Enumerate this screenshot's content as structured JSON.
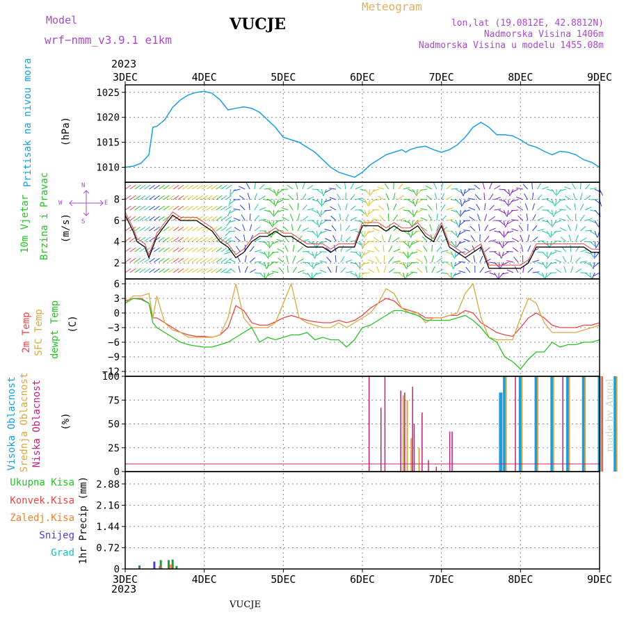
{
  "header": {
    "model_label": "Model",
    "model_version": "wrf−nmm_v3.9.1  e1km",
    "title": "VUCJE",
    "meteogram": "Meteogram",
    "coords": "lon,lat (19.0812E, 42.8812N)",
    "altitude": "Nadmorska Visina 1406m",
    "model_altitude": "Nadmorska Visina u modelu 1455.08m"
  },
  "x_axis": {
    "year": "2023",
    "days": [
      "3DEC",
      "4DEC",
      "5DEC",
      "6DEC",
      "7DEC",
      "8DEC",
      "9DEC"
    ]
  },
  "footer": "VUCJE",
  "watermark": "made by Angel",
  "colors": {
    "pressure": "#1a9ee0",
    "wind": "#22c422",
    "temp2m": "#e84545",
    "sfc": "#d9a840",
    "dewpt": "#22c422",
    "high_cloud": "#1a9ee0",
    "mid_cloud": "#d9a840",
    "low_cloud": "#c0207a",
    "total_precip": "#229933",
    "convective": "#e84545",
    "frozen": "#f08030",
    "snow": "#4444cc",
    "graupel": "#22bbbb"
  },
  "panels": {
    "pressure": {
      "title": "Pritisak na nivou mora",
      "unit": "(hPa)",
      "ticks": [
        "1010",
        "1015",
        "1020",
        "1025"
      ]
    },
    "wind": {
      "title1": "10m Vjetar",
      "title2": "Brzina i Pravac",
      "unit": "(m/s)",
      "ticks": [
        "2",
        "4",
        "6",
        "8"
      ],
      "compass_w": "W",
      "compass_e": "E",
      "compass_n": "N",
      "compass_s": "S"
    },
    "temp": {
      "title1": "2m Temp",
      "title2": "SFC Temp",
      "title3": "dewpt Temp",
      "unit": "(C)",
      "ticks": [
        "6",
        "3",
        "0",
        "−3",
        "−6",
        "−9",
        "−12"
      ]
    },
    "cloud": {
      "title1": "Visoka Oblacnost",
      "title2": "Srednja Oblacnost",
      "title3": "Niska Oblacnost",
      "unit": "(%)",
      "ticks": [
        "0",
        "25",
        "50",
        "75",
        "100"
      ]
    },
    "precip": {
      "legend": [
        "Ukupna Kisa",
        "Konvek.Kisa",
        "Zaledj.Kisa",
        "Snijeg",
        "Grad"
      ],
      "unit": "1hr Precip (mm)",
      "ticks": [
        "0",
        "0.72",
        "1.44",
        "2.16",
        "2.88"
      ]
    }
  },
  "chart_data": [
    {
      "type": "line",
      "title": "Pritisak na nivou mora",
      "ylabel": "(hPa)",
      "ylim": [
        1007,
        1026.5
      ],
      "x": [
        0,
        0.1,
        0.2,
        0.3,
        0.35,
        0.4,
        0.5,
        0.6,
        0.7,
        0.8,
        0.9,
        1.0,
        1.1,
        1.2,
        1.3,
        1.4,
        1.5,
        1.6,
        1.7,
        1.8,
        1.9,
        2.0,
        2.1,
        2.2,
        2.3,
        2.4,
        2.5,
        2.6,
        2.7,
        2.8,
        2.9,
        3.0,
        3.1,
        3.2,
        3.3,
        3.4,
        3.5,
        3.55,
        3.6,
        3.7,
        3.8,
        3.9,
        4.0,
        4.1,
        4.2,
        4.3,
        4.4,
        4.5,
        4.6,
        4.7,
        4.8,
        4.9,
        5.0,
        5.1,
        5.2,
        5.3,
        5.4,
        5.5,
        5.6,
        5.7,
        5.8,
        5.9,
        6.0
      ],
      "series": [
        {
          "values": [
            1010,
            1010.2,
            1010.8,
            1012.5,
            1018,
            1018.2,
            1019.5,
            1022,
            1023.5,
            1024.5,
            1025,
            1025.2,
            1024.8,
            1023.5,
            1021.5,
            1021.8,
            1022.1,
            1021.8,
            1021,
            1019.5,
            1018,
            1016,
            1015.5,
            1015,
            1014,
            1013,
            1011.5,
            1010,
            1009,
            1008.5,
            1008,
            1009,
            1010.5,
            1011.5,
            1012.5,
            1013,
            1013.5,
            1013,
            1013.5,
            1014,
            1014.2,
            1013.5,
            1013,
            1013.5,
            1014.5,
            1016,
            1018,
            1019,
            1018,
            1016.5,
            1016.5,
            1016.3,
            1015.5,
            1014.5,
            1014,
            1013.2,
            1012.5,
            1013.2,
            1013,
            1012.5,
            1011.5,
            1011,
            1010
          ]
        }
      ]
    },
    {
      "type": "line",
      "title": "10m Vjetar",
      "ylabel": "(m/s)",
      "ylim": [
        0.5,
        9.6
      ],
      "x": [
        0,
        0.1,
        0.15,
        0.25,
        0.3,
        0.4,
        0.5,
        0.6,
        0.7,
        0.8,
        0.9,
        1.0,
        1.1,
        1.2,
        1.3,
        1.4,
        1.5,
        1.6,
        1.7,
        1.8,
        1.9,
        2.0,
        2.1,
        2.2,
        2.3,
        2.4,
        2.5,
        2.6,
        2.7,
        2.8,
        2.9,
        3.0,
        3.1,
        3.2,
        3.3,
        3.4,
        3.5,
        3.6,
        3.7,
        3.8,
        3.9,
        4.0,
        4.1,
        4.2,
        4.3,
        4.4,
        4.5,
        4.6,
        4.7,
        4.8,
        4.9,
        5.0,
        5.1,
        5.2,
        5.3,
        5.4,
        5.5,
        5.6,
        5.7,
        5.8,
        5.9,
        6.0
      ],
      "series": [
        {
          "name": "speed",
          "values": [
            6.5,
            5,
            4,
            3.5,
            2.5,
            4.5,
            5.5,
            6.5,
            6,
            6,
            6,
            5.5,
            5,
            4,
            3.5,
            2.5,
            3,
            4,
            4.5,
            4.5,
            5,
            4.5,
            4.5,
            4,
            3.5,
            3.5,
            3.5,
            3,
            3.5,
            3.5,
            3.5,
            5.5,
            5.5,
            5.5,
            5,
            5.5,
            5,
            5,
            5.5,
            4.5,
            4,
            5.5,
            3.5,
            3,
            2.5,
            3,
            3.5,
            1.5,
            1.5,
            1.5,
            1.5,
            1.5,
            2,
            3.5,
            3.5,
            3.5,
            3.5,
            3.5,
            3.5,
            3.5,
            3,
            3
          ]
        }
      ]
    },
    {
      "type": "line",
      "title": "2m Temp",
      "ylabel": "(C)",
      "ylim": [
        -13,
        7
      ],
      "x": [
        0,
        0.1,
        0.2,
        0.3,
        0.35,
        0.4,
        0.5,
        0.6,
        0.7,
        0.8,
        0.9,
        1.0,
        1.1,
        1.2,
        1.3,
        1.4,
        1.5,
        1.6,
        1.7,
        1.8,
        1.9,
        2.0,
        2.1,
        2.2,
        2.3,
        2.4,
        2.5,
        2.6,
        2.7,
        2.8,
        2.9,
        3.0,
        3.1,
        3.2,
        3.3,
        3.4,
        3.5,
        3.6,
        3.7,
        3.8,
        3.9,
        4.0,
        4.1,
        4.2,
        4.3,
        4.4,
        4.5,
        4.6,
        4.7,
        4.8,
        4.9,
        5.0,
        5.1,
        5.2,
        5.3,
        5.4,
        5.5,
        5.6,
        5.7,
        5.8,
        5.9,
        6.0
      ],
      "series": [
        {
          "name": "2m Temp",
          "values": [
            2.5,
            3,
            3,
            2,
            -1,
            -1,
            -2,
            -3,
            -4,
            -4.5,
            -4.8,
            -4.8,
            -5,
            -4.5,
            -3,
            1.5,
            0.5,
            -2,
            -2.5,
            -2.5,
            -1.8,
            -1,
            -0.5,
            -1,
            -1.5,
            -1.8,
            -2,
            -2,
            -1.5,
            -2,
            -1.5,
            -0.5,
            1,
            2,
            3,
            2.5,
            1,
            0.5,
            0,
            -1,
            -1,
            -1,
            -0.5,
            -0.5,
            0.5,
            0,
            -2,
            -3,
            -4,
            -4.5,
            -4.8,
            -3,
            -1,
            0,
            -1,
            -2.5,
            -3,
            -3,
            -3,
            -2.5,
            -2.5,
            -2
          ]
        },
        {
          "name": "SFC Temp",
          "values": [
            2,
            3.5,
            3.5,
            4,
            -1,
            3.5,
            -2,
            -3.5,
            -4,
            -5,
            -5,
            -5,
            -5,
            -4.5,
            -1,
            6,
            -1,
            -3,
            -3,
            -3,
            -2,
            2,
            6,
            -1,
            -2,
            -2.5,
            -3,
            -3,
            -2,
            -3,
            -2,
            -1,
            0,
            2,
            5,
            4,
            1,
            0,
            0,
            -2,
            -1,
            -1,
            -0.5,
            0,
            4,
            6,
            -1,
            -5,
            -5.5,
            -5.5,
            -5.5,
            -1,
            3,
            2,
            -2,
            -4,
            -4,
            -4,
            -4,
            -3.5,
            -3,
            -2.5
          ]
        },
        {
          "name": "dewpt Temp",
          "values": [
            2,
            3,
            2.8,
            2,
            -2,
            -3,
            -4,
            -5,
            -6,
            -6.5,
            -6.8,
            -7,
            -7,
            -6.5,
            -6,
            -5,
            -4,
            -3,
            -6,
            -5,
            -5.5,
            -5,
            -4.5,
            -4.5,
            -4,
            -5.5,
            -5,
            -5.5,
            -5.5,
            -7,
            -5.5,
            -3,
            -2.5,
            -1.5,
            -0.5,
            0.5,
            0.5,
            0,
            -0.5,
            -1.5,
            -1.5,
            -1.5,
            -1.5,
            -1,
            -0.5,
            -1.5,
            -3,
            -5,
            -6,
            -9,
            -10,
            -11.5,
            -9.5,
            -8,
            -8,
            -6,
            -7,
            -6.5,
            -6.5,
            -6,
            -6,
            -5.5
          ]
        }
      ]
    },
    {
      "type": "bar",
      "title": "Oblacnost",
      "ylabel": "(%)",
      "ylim": [
        0,
        100
      ],
      "series": [
        {
          "name": "Visoka Oblacnost",
          "values": [
            [
              4.75,
              83
            ],
            [
              4.8,
              100
            ],
            [
              5.0,
              100
            ],
            [
              5.2,
              100
            ],
            [
              5.4,
              100
            ],
            [
              5.6,
              100
            ],
            [
              5.8,
              100
            ],
            [
              6.0,
              100
            ],
            [
              6.2,
              100
            ],
            [
              6.4,
              100
            ],
            [
              6.6,
              100
            ],
            [
              6.8,
              100
            ],
            [
              7.0,
              100
            ],
            [
              7.2,
              100
            ],
            [
              7.4,
              100
            ],
            [
              7.55,
              70
            ],
            [
              7.65,
              100
            ],
            [
              7.9,
              100
            ],
            [
              8.2,
              100
            ],
            [
              8.5,
              100
            ],
            [
              8.8,
              100
            ],
            [
              8.85,
              28
            ],
            [
              9.0,
              100
            ]
          ]
        },
        {
          "name": "Srednja Oblacnost",
          "values": [
            [
              3.5,
              80
            ],
            [
              3.55,
              75
            ],
            [
              3.6,
              35
            ],
            [
              3.7,
              25
            ],
            [
              4.8,
              100
            ],
            [
              5.0,
              100
            ],
            [
              5.2,
              100
            ],
            [
              5.4,
              100
            ],
            [
              5.6,
              100
            ],
            [
              5.8,
              100
            ],
            [
              6.0,
              100
            ],
            [
              6.2,
              100
            ],
            [
              6.4,
              100
            ],
            [
              6.6,
              100
            ],
            [
              6.8,
              100
            ],
            [
              7.0,
              100
            ],
            [
              7.2,
              100
            ],
            [
              7.3,
              100
            ],
            [
              7.4,
              100
            ],
            [
              7.45,
              48
            ],
            [
              7.5,
              100
            ],
            [
              7.65,
              100
            ],
            [
              8.9,
              100
            ],
            [
              9.0,
              100
            ]
          ]
        },
        {
          "name": "Niska Oblacnost",
          "values": [
            [
              3.05,
              100
            ],
            [
              3.2,
              67
            ],
            [
              3.25,
              100
            ],
            [
              3.45,
              85
            ],
            [
              3.5,
              83
            ],
            [
              3.6,
              89
            ],
            [
              3.62,
              50
            ],
            [
              3.72,
              62
            ],
            [
              3.8,
              12
            ],
            [
              3.9,
              5
            ],
            [
              4.07,
              42
            ],
            [
              4.1,
              42
            ],
            [
              4.9,
              100
            ],
            [
              5.5,
              100
            ],
            [
              6.0,
              100
            ],
            [
              6.4,
              100
            ],
            [
              6.6,
              100
            ],
            [
              7.0,
              100
            ],
            [
              7.5,
              100
            ],
            [
              7.7,
              100
            ],
            [
              7.9,
              100
            ],
            [
              8.0,
              100
            ],
            [
              8.05,
              40
            ],
            [
              8.15,
              95
            ],
            [
              8.35,
              2
            ],
            [
              8.4,
              3
            ],
            [
              8.5,
              10
            ],
            [
              8.55,
              8
            ],
            [
              8.7,
              2
            ]
          ]
        }
      ]
    },
    {
      "type": "bar",
      "title": "1hr Precip",
      "ylabel": "1hr Precip (mm)",
      "ylim": [
        0,
        3.3
      ],
      "series": [
        {
          "name": "Ukupna Kisa",
          "values": [
            [
              0.18,
              0.12
            ],
            [
              0.45,
              0.3
            ],
            [
              0.55,
              0.3
            ],
            [
              0.6,
              0.32
            ],
            [
              0.65,
              0.1
            ],
            [
              6.35,
              0.18
            ],
            [
              6.45,
              0.22
            ],
            [
              6.55,
              0.2
            ],
            [
              6.6,
              0.1
            ],
            [
              6.7,
              0.35
            ],
            [
              6.75,
              0.75
            ],
            [
              6.8,
              1.0
            ],
            [
              6.85,
              1.6
            ],
            [
              6.9,
              3.2
            ],
            [
              6.95,
              0.58
            ],
            [
              7.3,
              0.1
            ],
            [
              7.45,
              0.4
            ],
            [
              7.5,
              0.9
            ],
            [
              7.55,
              0.95
            ],
            [
              7.6,
              0.1
            ],
            [
              7.8,
              0.1
            ],
            [
              8.0,
              0.05
            ]
          ]
        },
        {
          "name": "Konvek.Kisa",
          "values": [
            [
              0.45,
              0.1
            ],
            [
              6.8,
              0.4
            ],
            [
              6.85,
              0.5
            ],
            [
              6.9,
              0.65
            ]
          ]
        },
        {
          "name": "Zaledj.Kisa",
          "values": [
            [
              0.6,
              0.15
            ],
            [
              6.75,
              0.3
            ],
            [
              6.8,
              0.85
            ]
          ]
        },
        {
          "name": "Snijeg",
          "values": [
            [
              0.4,
              0.25
            ],
            [
              6.4,
              0.15
            ],
            [
              6.7,
              0.1
            ],
            [
              6.8,
              1.45
            ]
          ]
        },
        {
          "name": "Grad",
          "values": [
            [
              0.5,
              0.05
            ],
            [
              6.6,
              0.1
            ],
            [
              7.5,
              0.05
            ]
          ]
        }
      ]
    }
  ]
}
